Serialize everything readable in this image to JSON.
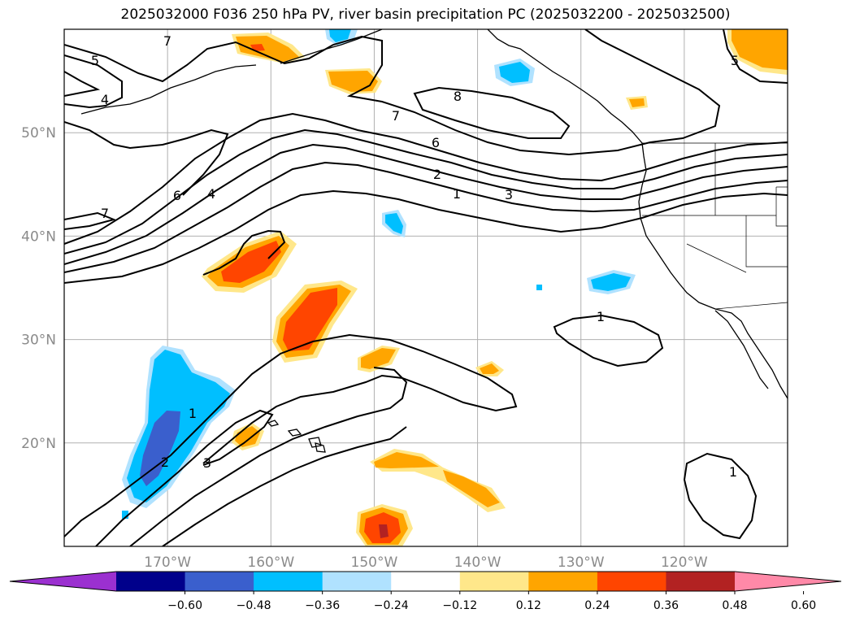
{
  "title": "2025032000 F036 250 hPa PV, river basin precipitation PC (2025032200 - 2025032500)",
  "map": {
    "lat_ticks": [
      {
        "label": "50°N",
        "lat": 50
      },
      {
        "label": "40°N",
        "lat": 40
      },
      {
        "label": "30°N",
        "lat": 30
      },
      {
        "label": "20°N",
        "lat": 20
      }
    ],
    "lon_ticks": [
      {
        "label": "170°W",
        "lon": -170
      },
      {
        "label": "160°W",
        "lon": -160
      },
      {
        "label": "150°W",
        "lon": -150
      },
      {
        "label": "140°W",
        "lon": -140
      },
      {
        "label": "130°W",
        "lon": -130
      },
      {
        "label": "120°W",
        "lon": -120
      }
    ],
    "extent": {
      "lon_min": -180,
      "lon_max": -110,
      "lat_min": 10,
      "lat_max": 60
    },
    "pv_contour_labels": [
      "7",
      "5",
      "4",
      "8",
      "7",
      "6",
      "2",
      "1",
      "3",
      "6",
      "4",
      "7",
      "1",
      "1",
      "2",
      "3",
      "1",
      "5"
    ]
  },
  "colorbar": {
    "colors": [
      "#9b30d0",
      "#00008b",
      "#3a5fcd",
      "#00bfff",
      "#b0e2ff",
      "#ffffff",
      "#ffe78a",
      "#ffa500",
      "#ff4500",
      "#b22222",
      "#ff89a8"
    ],
    "tick_labels": [
      "−0.60",
      "−0.48",
      "−0.36",
      "−0.24",
      "−0.12",
      "0.12",
      "0.24",
      "0.36",
      "0.48",
      "0.60"
    ]
  },
  "palette": {
    "light_yellow": "#ffe78a",
    "orange": "#ffa500",
    "red_orange": "#ff4500",
    "dark_red": "#b22222",
    "light_blue": "#b0e2ff",
    "sky_blue": "#00bfff",
    "royal_blue": "#3a5fcd"
  }
}
